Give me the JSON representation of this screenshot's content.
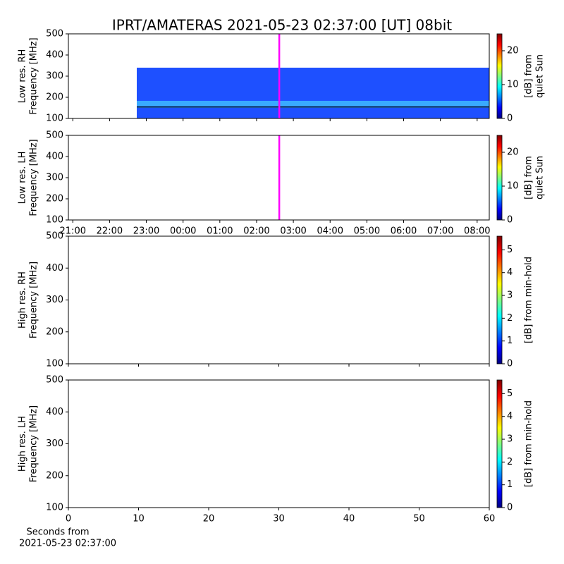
{
  "chart_data": [
    {
      "type": "spectrogram",
      "title": "IPRT/AMATERAS 2021-05-23 02:37:00 [UT]   08bit",
      "ylabel": [
        "Low res. RH",
        "Frequency [MHz]"
      ],
      "ylim": [
        100,
        500
      ],
      "yticks": [
        100,
        200,
        300,
        400,
        500
      ],
      "xlim": [
        20.88,
        32.33
      ],
      "cursor_x": 26.617,
      "cursor_color": "#ff00ff",
      "colormap": "jet",
      "clim": [
        0,
        25
      ],
      "cticks": [
        0,
        10,
        20
      ],
      "clabel": [
        "[dB] from",
        "quiet Sun"
      ]
    },
    {
      "type": "spectrogram",
      "ylabel": [
        "Low res. LH",
        "Frequency [MHz]"
      ],
      "ylim": [
        100,
        500
      ],
      "yticks": [
        100,
        200,
        300,
        400,
        500
      ],
      "xlim": [
        20.88,
        32.33
      ],
      "xticks": [
        {
          "value": 21,
          "label": "21:00"
        },
        {
          "value": 22,
          "label": "22:00"
        },
        {
          "value": 23,
          "label": "23:00"
        },
        {
          "value": 24,
          "label": "00:00"
        },
        {
          "value": 25,
          "label": "01:00"
        },
        {
          "value": 26,
          "label": "02:00"
        },
        {
          "value": 27,
          "label": "03:00"
        },
        {
          "value": 28,
          "label": "04:00"
        },
        {
          "value": 29,
          "label": "05:00"
        },
        {
          "value": 30,
          "label": "06:00"
        },
        {
          "value": 31,
          "label": "07:00"
        },
        {
          "value": 32,
          "label": "08:00"
        }
      ],
      "cursor_x": 26.617,
      "cursor_color": "#ff00ff",
      "colormap": "jet",
      "clim": [
        0,
        25
      ],
      "cticks": [
        0,
        10,
        20
      ],
      "clabel": [
        "[dB] from",
        "quiet Sun"
      ]
    },
    {
      "type": "spectrogram",
      "ylabel": [
        "High res. RH",
        "Frequency [MHz]"
      ],
      "ylim": [
        100,
        500
      ],
      "yticks": [
        100,
        200,
        300,
        400,
        500
      ],
      "xlim": [
        0,
        60
      ],
      "colormap": "jet",
      "clim": [
        0,
        5.6
      ],
      "cticks": [
        0,
        1,
        2,
        3,
        4,
        5
      ],
      "clabel": [
        "[dB] from min-hold"
      ]
    },
    {
      "type": "spectrogram",
      "ylabel": [
        "High res. LH",
        "Frequency [MHz]"
      ],
      "ylim": [
        100,
        500
      ],
      "yticks": [
        100,
        200,
        300,
        400,
        500
      ],
      "xlim": [
        0,
        60
      ],
      "xticks": [
        0,
        10,
        20,
        30,
        40,
        50,
        60
      ],
      "xlabel": [
        "Seconds from",
        "2021-05-23 02:37:00"
      ],
      "colormap": "jet",
      "clim": [
        0,
        5.6
      ],
      "cticks": [
        0,
        1,
        2,
        3,
        4,
        5
      ],
      "clabel": [
        "[dB] from min-hold"
      ]
    }
  ]
}
